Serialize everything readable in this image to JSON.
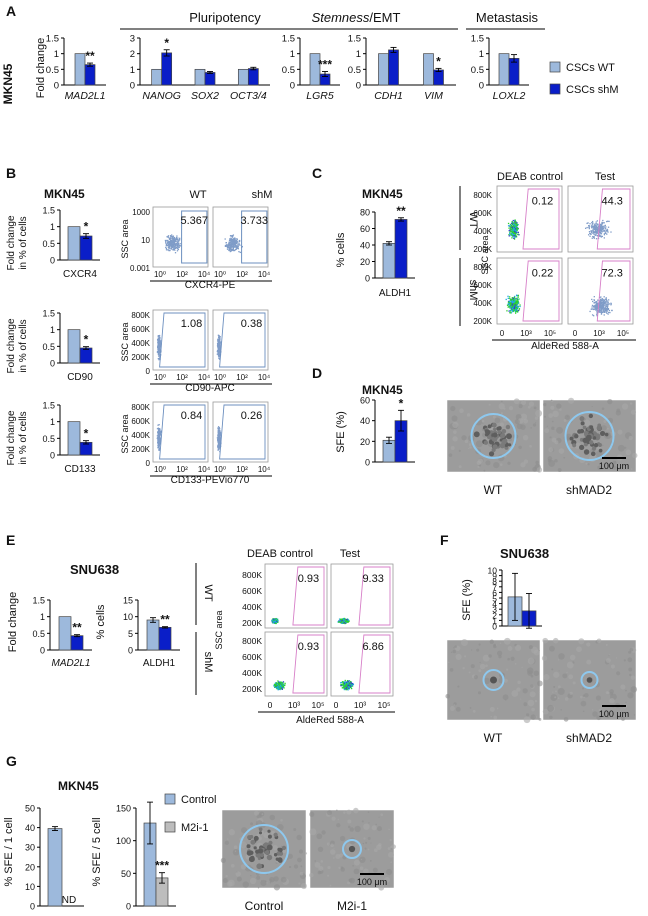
{
  "colors": {
    "wt": "#9db9dc",
    "shm": "#0a1ec8",
    "gray": "#bdbdbd",
    "gate": "#d77fc8",
    "gateBlue": "#6c8fbf",
    "ring": "#8ec8ee",
    "axis": "#000"
  },
  "panelA": {
    "label": "A",
    "cell_line": "MKN45",
    "ylabel": "Fold change",
    "sections": [
      {
        "text": "Pluripotency"
      },
      {
        "text_italic": "Stemness",
        "text_rest": "/EMT"
      },
      {
        "text": "Metastasis"
      }
    ],
    "legend": [
      {
        "name": "CSCs WT"
      },
      {
        "name": "CSCs shM"
      }
    ],
    "charts": [
      {
        "genes": [
          "MAD2L1"
        ],
        "ticks": [
          "0",
          "0.5",
          "1",
          "1.5"
        ],
        "ylim": [
          0,
          1.5
        ],
        "wt": [
          1
        ],
        "shm": [
          0.65
        ],
        "wt_err": [
          0
        ],
        "shm_err": [
          0.05
        ],
        "stars": [
          "**"
        ]
      },
      {
        "genes": [
          "NANOG",
          "SOX2",
          "OCT3/4"
        ],
        "ticks": [
          "0",
          "1",
          "2",
          "3"
        ],
        "ylim": [
          0,
          3
        ],
        "wt": [
          1,
          1,
          1
        ],
        "shm": [
          2.05,
          0.8,
          1.05
        ],
        "wt_err": [
          0,
          0,
          0
        ],
        "shm_err": [
          0.2,
          0.06,
          0.08
        ],
        "stars": [
          "*",
          "",
          ""
        ]
      },
      {
        "genes": [
          "LGR5"
        ],
        "ticks": [
          "0",
          "0.5",
          "1",
          "1.5"
        ],
        "ylim": [
          0,
          1.5
        ],
        "wt": [
          1
        ],
        "shm": [
          0.35
        ],
        "wt_err": [
          0
        ],
        "shm_err": [
          0.08
        ],
        "stars": [
          "***"
        ]
      },
      {
        "genes": [
          "CDH1",
          "VIM"
        ],
        "ticks": [
          "0",
          "0.5",
          "1",
          "1.5"
        ],
        "ylim": [
          0,
          1.5
        ],
        "wt": [
          1,
          1
        ],
        "shm": [
          1.12,
          0.48
        ],
        "wt_err": [
          0,
          0
        ],
        "shm_err": [
          0.08,
          0.05
        ],
        "stars": [
          "",
          "*"
        ]
      },
      {
        "genes": [
          "LOXL2"
        ],
        "ticks": [
          "0",
          "0.5",
          "1",
          "1.5"
        ],
        "ylim": [
          0,
          1.5
        ],
        "wt": [
          1
        ],
        "shm": [
          0.85
        ],
        "wt_err": [
          0
        ],
        "shm_err": [
          0.12
        ],
        "stars": [
          ""
        ]
      }
    ]
  },
  "panelB": {
    "label": "B",
    "cell_line": "MKN45",
    "ylabel": "Fold change in % of cells",
    "ssc": "SSC area",
    "col_wt": "WT",
    "col_shm": "shM",
    "charts": [
      {
        "marker": "CXCR4",
        "ticks": [
          "0",
          "0.5",
          "1",
          "1.5"
        ],
        "ylim": [
          0,
          1.5
        ],
        "wt": 1,
        "shm": 0.72,
        "shm_err": 0.07,
        "star": "*"
      },
      {
        "marker": "CD90",
        "ticks": [
          "0",
          "0.5",
          "1",
          "1.5"
        ],
        "ylim": [
          0,
          1.5
        ],
        "wt": 1,
        "shm": 0.45,
        "shm_err": 0.04,
        "star": "*"
      },
      {
        "marker": "CD133",
        "ticks": [
          "0",
          "0.5",
          "1",
          "1.5"
        ],
        "ylim": [
          0,
          1.5
        ],
        "wt": 1,
        "shm": 0.38,
        "shm_err": 0.05,
        "star": "*"
      }
    ],
    "flow": [
      {
        "xlabel": "CXCR4-PE",
        "yticks": [
          "1000",
          "10",
          "0.001"
        ],
        "xticks": [
          "10⁰",
          "10²",
          "10⁴"
        ],
        "wt": "5.367",
        "shm": "3.733"
      },
      {
        "xlabel": "CD90-APC",
        "yticks": [
          "800K",
          "600K",
          "400K",
          "200K",
          "0"
        ],
        "xticks": [
          "10⁰",
          "10²",
          "10⁴"
        ],
        "wt": "1.08",
        "shm": "0.38"
      },
      {
        "xlabel": "CD133-PEVio770",
        "yticks": [
          "800K",
          "600K",
          "400K",
          "200K",
          "0"
        ],
        "xticks": [
          "10⁰",
          "10²",
          "10⁴"
        ],
        "wt": "0.84",
        "shm": "0.26"
      }
    ]
  },
  "panelC": {
    "label": "C",
    "cell_line": "MKN45",
    "ylabel": "% cells",
    "marker": "ALDH1",
    "ticks": [
      "0",
      "20",
      "40",
      "60",
      "80"
    ],
    "ylim": [
      0,
      80
    ],
    "wt": 42,
    "shm": 71,
    "wt_err": 2,
    "shm_err": 2,
    "star": "**",
    "col1": "DEAB control",
    "col2": "Test",
    "row1": "WT",
    "row2": "shM",
    "ssc": "SSC area",
    "xlabel": "AldeRed 588-A",
    "yticks": [
      "800K",
      "600K",
      "400K",
      "200K"
    ],
    "xticks": [
      "0",
      "10³",
      "10⁵"
    ],
    "values": [
      "0.12",
      "44.3",
      "0.22",
      "72.3"
    ]
  },
  "panelD": {
    "label": "D",
    "cell_line": "MKN45",
    "ylabel": "SFE (%)",
    "ticks": [
      "0",
      "20",
      "40",
      "60"
    ],
    "ylim": [
      0,
      60
    ],
    "wt": 21,
    "shm": 40,
    "wt_err": 3,
    "shm_err": 10,
    "star": "*",
    "img1": "WT",
    "img2": "shMAD2",
    "scale": "100 μm"
  },
  "panelE": {
    "label": "E",
    "cell_line": "SNU638",
    "chart1": {
      "ylabel": "Fold change",
      "marker": "MAD2L1",
      "ticks": [
        "0",
        "0.5",
        "1",
        "1.5"
      ],
      "ylim": [
        0,
        1.5
      ],
      "wt": 1,
      "shm": 0.43,
      "shm_err": 0.03,
      "star": "**"
    },
    "chart2": {
      "ylabel": "% cells",
      "marker": "ALDH1",
      "ticks": [
        "0",
        "5",
        "10",
        "15"
      ],
      "ylim": [
        0,
        15
      ],
      "wt": 9,
      "shm": 6.8,
      "wt_err": 0.7,
      "shm_err": 0.2,
      "star": "**"
    },
    "col1": "DEAB control",
    "col2": "Test",
    "row1": "WT",
    "row2": "shM",
    "ssc": "SSC area",
    "xlabel": "AldeRed 588-A",
    "yticks": [
      "800K",
      "600K",
      "400K",
      "200K"
    ],
    "xticks": [
      "0",
      "10³",
      "10⁵"
    ],
    "values": [
      "0.93",
      "9.33",
      "0.93",
      "6.86"
    ]
  },
  "panelF": {
    "label": "F",
    "cell_line": "SNU638",
    "ylabel": "SFE (%)",
    "ticks": [
      "0",
      "1",
      "2",
      "3",
      "4",
      "5",
      "6",
      "7",
      "8",
      "9",
      "10"
    ],
    "ylim": [
      0,
      10
    ],
    "wt": 5.2,
    "shm": 2.7,
    "wt_err": 4.2,
    "shm_err": 3.1,
    "img1": "WT",
    "img2": "shMAD2",
    "scale": "100 μm"
  },
  "panelG": {
    "label": "G",
    "cell_line": "MKN45",
    "chart1": {
      "ylabel": "% SFE / 1 cell",
      "ticks": [
        "0",
        "10",
        "20",
        "30",
        "40",
        "50"
      ],
      "ylim": [
        0,
        50
      ],
      "control": 39.5,
      "control_err": 1,
      "nd": "ND"
    },
    "chart2": {
      "ylabel": "% SFE / 5 cell",
      "ticks": [
        "0",
        "50",
        "100",
        "150"
      ],
      "ylim": [
        0,
        150
      ],
      "control": 127,
      "m2i": 43,
      "control_err": 32,
      "m2i_err": 8,
      "star": "***"
    },
    "legend": [
      {
        "name": "Control"
      },
      {
        "name": "M2i-1"
      }
    ],
    "img1": "Control",
    "img2": "M2i-1",
    "scale": "100 μm"
  }
}
